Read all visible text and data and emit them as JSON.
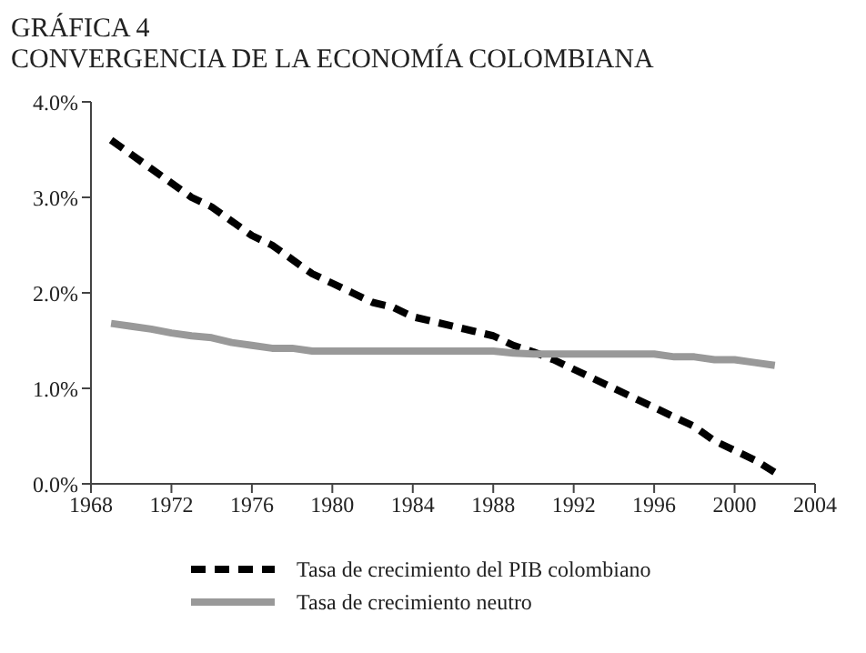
{
  "chart_data": {
    "type": "line",
    "title": "GRÁFICA 4",
    "subtitle": "CONVERGENCIA DE LA ECONOMÍA COLOMBIANA",
    "x": [
      1969,
      1970,
      1971,
      1972,
      1973,
      1974,
      1975,
      1976,
      1977,
      1978,
      1979,
      1980,
      1981,
      1982,
      1983,
      1984,
      1985,
      1986,
      1987,
      1988,
      1989,
      1990,
      1991,
      1992,
      1993,
      1994,
      1995,
      1996,
      1997,
      1998,
      1999,
      2000,
      2001,
      2002
    ],
    "series": [
      {
        "name": "Tasa de crecimiento del PIB colombiano",
        "color": "#000000",
        "line_style": "dashed",
        "values": [
          3.6,
          3.45,
          3.3,
          3.15,
          3.0,
          2.9,
          2.75,
          2.6,
          2.5,
          2.35,
          2.2,
          2.1,
          2.0,
          1.9,
          1.85,
          1.75,
          1.7,
          1.65,
          1.6,
          1.55,
          1.45,
          1.38,
          1.3,
          1.2,
          1.1,
          1.0,
          0.9,
          0.8,
          0.7,
          0.6,
          0.45,
          0.35,
          0.25,
          0.12
        ]
      },
      {
        "name": "Tasa de crecimiento neutro",
        "color": "#999999",
        "line_style": "solid",
        "values": [
          1.68,
          1.65,
          1.62,
          1.58,
          1.55,
          1.53,
          1.48,
          1.45,
          1.42,
          1.42,
          1.39,
          1.39,
          1.39,
          1.39,
          1.39,
          1.39,
          1.39,
          1.39,
          1.39,
          1.39,
          1.37,
          1.36,
          1.36,
          1.36,
          1.36,
          1.36,
          1.36,
          1.36,
          1.33,
          1.33,
          1.3,
          1.3,
          1.27,
          1.24
        ]
      }
    ],
    "xlim": [
      1968,
      2004
    ],
    "xticks": [
      1968,
      1972,
      1976,
      1980,
      1984,
      1988,
      1992,
      1996,
      2000,
      2004
    ],
    "ylim": [
      0,
      4
    ],
    "yticks": [
      {
        "value": 0,
        "label": "0.0%"
      },
      {
        "value": 1,
        "label": "1.0%"
      },
      {
        "value": 2,
        "label": "2.0%"
      },
      {
        "value": 3,
        "label": "3.0%"
      },
      {
        "value": 4,
        "label": "4.0%"
      }
    ],
    "grid": false,
    "legend": "bottom",
    "marker": "none"
  }
}
